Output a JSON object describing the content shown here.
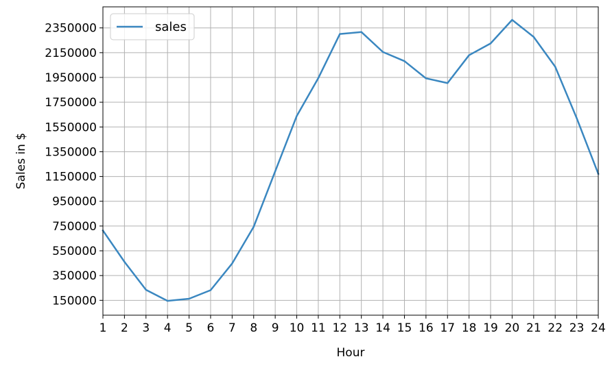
{
  "chart_data": {
    "type": "line",
    "title": "",
    "xlabel": "Hour",
    "ylabel": "Sales in $",
    "x": [
      1,
      2,
      3,
      4,
      5,
      6,
      7,
      8,
      9,
      10,
      11,
      12,
      13,
      14,
      15,
      16,
      17,
      18,
      19,
      20,
      21,
      22,
      23,
      24
    ],
    "xticks": [
      "1",
      "2",
      "3",
      "4",
      "5",
      "6",
      "7",
      "8",
      "9",
      "10",
      "11",
      "12",
      "13",
      "14",
      "15",
      "16",
      "17",
      "18",
      "19",
      "20",
      "21",
      "22",
      "23",
      "24"
    ],
    "yticks": [
      "150000",
      "350000",
      "550000",
      "750000",
      "950000",
      "1150000",
      "1350000",
      "1550000",
      "1750000",
      "1950000",
      "2150000",
      "2350000"
    ],
    "xlim": [
      1,
      24
    ],
    "ylim": [
      30000,
      2520000
    ],
    "grid": true,
    "legend_position": "upper-left",
    "series": [
      {
        "name": "sales",
        "color": "#3a87c0",
        "values": [
          713721,
          460866,
          234851,
          145757,
          162661,
          232092,
          447477,
          743818,
          1192348,
          1639031,
          1944286,
          2300610,
          2316821,
          2155389,
          2081898,
          1942665,
          1904601,
          2129511,
          2224510,
          2414860,
          2277325,
          2036590,
          1620400,
          1171834
        ]
      }
    ]
  }
}
